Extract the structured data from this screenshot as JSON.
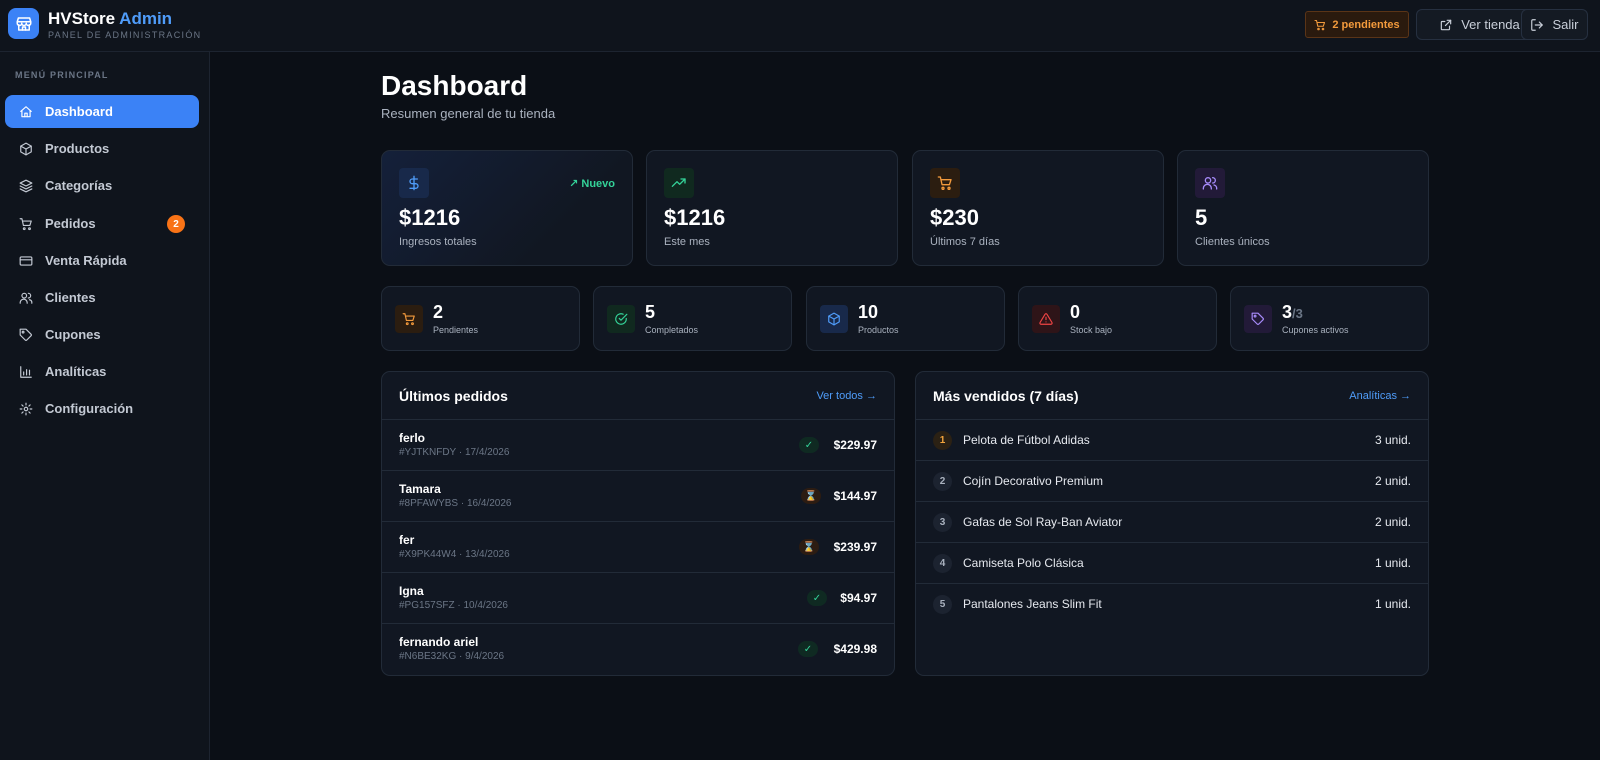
{
  "header": {
    "brand_name": "HVStore",
    "brand_accent": "Admin",
    "brand_sub": "PANEL DE ADMINISTRACIÓN",
    "pending_label": "2 pendientes",
    "store_label": "Ver tienda",
    "exit_label": "Salir"
  },
  "sidebar": {
    "menu_label": "MENÚ PRINCIPAL",
    "items": [
      {
        "label": "Dashboard",
        "icon": "home-icon",
        "active": true
      },
      {
        "label": "Productos",
        "icon": "box-icon"
      },
      {
        "label": "Categorías",
        "icon": "layers-icon"
      },
      {
        "label": "Pedidos",
        "icon": "cart-icon",
        "badge": "2"
      },
      {
        "label": "Venta Rápida",
        "icon": "card-icon"
      },
      {
        "label": "Clientes",
        "icon": "users-icon"
      },
      {
        "label": "Cupones",
        "icon": "tag-icon"
      },
      {
        "label": "Analíticas",
        "icon": "bar-chart-icon"
      },
      {
        "label": "Configuración",
        "icon": "gear-icon"
      }
    ]
  },
  "main": {
    "title": "Dashboard",
    "subtitle": "Resumen general de tu tienda",
    "stats": [
      {
        "value": "$1216",
        "label": "Ingresos totales",
        "tag": "Nuevo",
        "icon": "dollar-icon",
        "color": "#4f9cf9"
      },
      {
        "value": "$1216",
        "label": "Este mes",
        "icon": "trending-up-icon",
        "color": "#34d399"
      },
      {
        "value": "$230",
        "label": "Últimos 7 días",
        "icon": "cart-icon",
        "color": "#f39a3c"
      },
      {
        "value": "5",
        "label": "Clientes únicos",
        "icon": "users-icon",
        "color": "#a78bfa"
      }
    ],
    "mini_stats": [
      {
        "value": "2",
        "label": "Pendientes",
        "icon": "cart-icon",
        "color": "#f39a3c"
      },
      {
        "value": "5",
        "label": "Completados",
        "icon": "check-circle-icon",
        "color": "#34d399"
      },
      {
        "value": "10",
        "label": "Productos",
        "icon": "box-icon",
        "color": "#4f9cf9"
      },
      {
        "value": "0",
        "label": "Stock bajo",
        "icon": "warning-icon",
        "color": "#ef4444"
      },
      {
        "value": "3",
        "value_suffix": "/3",
        "label": "Cupones activos",
        "icon": "tag-icon",
        "color": "#a78bfa"
      }
    ],
    "orders": {
      "title": "Últimos pedidos",
      "link": "Ver todos →",
      "rows": [
        {
          "name": "ferlo",
          "meta": "#YJTKNFDY · 17/4/2026",
          "amount": "$229.97",
          "status": "done",
          "status_glyph": "✓"
        },
        {
          "name": "Tamara",
          "meta": "#8PFAWYBS · 16/4/2026",
          "amount": "$144.97",
          "status": "wait",
          "status_glyph": "⌛"
        },
        {
          "name": "fer",
          "meta": "#X9PK44W4 · 13/4/2026",
          "amount": "$239.97",
          "status": "wait",
          "status_glyph": "⌛"
        },
        {
          "name": "Igna",
          "meta": "#PG157SFZ · 10/4/2026",
          "amount": "$94.97",
          "status": "done",
          "status_glyph": "✓"
        },
        {
          "name": "fernando ariel",
          "meta": "#N6BE32KG · 9/4/2026",
          "amount": "$429.98",
          "status": "done",
          "status_glyph": "✓"
        }
      ]
    },
    "best_sellers": {
      "title": "Más vendidos (7 días)",
      "link": "Analíticas →",
      "rows": [
        {
          "rank": "1",
          "name": "Pelota de Fútbol Adidas",
          "qty": "3 unid."
        },
        {
          "rank": "2",
          "name": "Cojín Decorativo Premium",
          "qty": "2 unid."
        },
        {
          "rank": "3",
          "name": "Gafas de Sol Ray-Ban Aviator",
          "qty": "2 unid."
        },
        {
          "rank": "4",
          "name": "Camiseta Polo Clásica",
          "qty": "1 unid."
        },
        {
          "rank": "5",
          "name": "Pantalones Jeans Slim Fit",
          "qty": "1 unid."
        }
      ]
    }
  }
}
